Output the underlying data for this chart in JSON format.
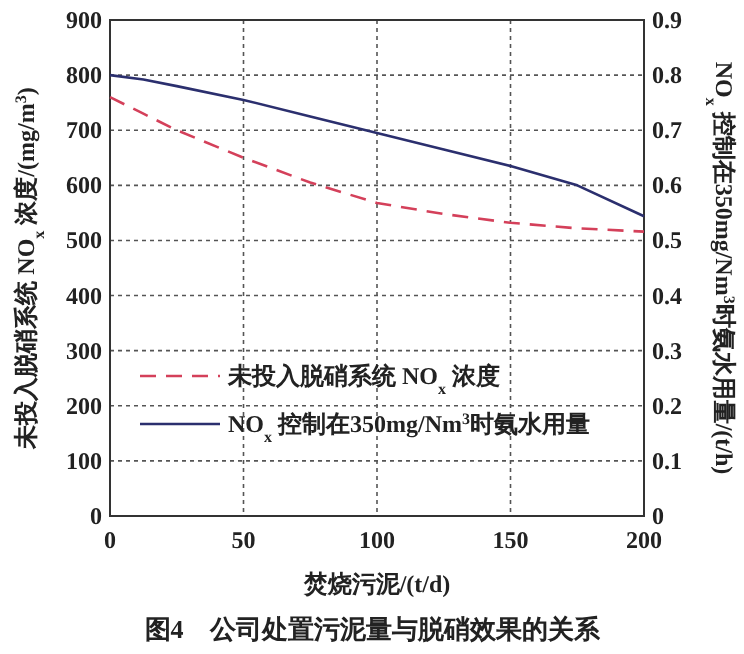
{
  "chart_data": {
    "type": "line",
    "xlabel": "焚烧污泥/(t/d)",
    "ylabel": "未投入脱硝系统 NO$_{x}$ 浓度/(mg/m$^{3}$)",
    "y2label": "NO$_{x}$ 控制在350mg/Nm$^{3}$时氨水用量/(t/h)",
    "annotations": [
      "图4　公司处置污泥量与脱硝效果的关系"
    ],
    "x": [
      0,
      12.5,
      25,
      50,
      75,
      100,
      125,
      150,
      175,
      200
    ],
    "series": [
      {
        "name": "未投入脱硝系统 NO$_{x}$ 浓度",
        "color": "#d4405a",
        "line_style": "dashed",
        "values": [
          760,
          730,
          700,
          650,
          605,
          568,
          548,
          532,
          522,
          516
        ]
      },
      {
        "name": "NO$_{x}$ 控制在350mg/Nm$^{3}$时氨水用量",
        "color": "#2b2f6e",
        "line_style": "solid",
        "axis": "y2",
        "values": [
          0.8,
          0.792,
          0.78,
          0.755,
          0.725,
          0.695,
          0.665,
          0.635,
          0.6,
          0.544
        ]
      }
    ],
    "xlim": [
      0,
      200
    ],
    "xticks": [
      0,
      50,
      100,
      150,
      200
    ],
    "ylim": [
      0,
      900
    ],
    "yticks": [
      0,
      100,
      200,
      300,
      400,
      500,
      600,
      700,
      800,
      900
    ],
    "y2lim": [
      0,
      0.9
    ],
    "y2ticks": [
      0,
      0.1,
      0.2,
      0.3,
      0.4,
      0.5,
      0.6,
      0.7,
      0.8,
      0.9
    ],
    "grid": true,
    "legend": "bottom"
  }
}
